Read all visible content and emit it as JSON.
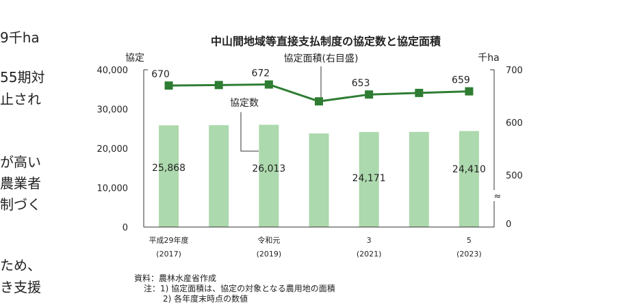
{
  "side_text": [
    "9千ha",
    "55期対",
    "止され",
    "が高い",
    "農業者",
    "制づく",
    "ため、",
    "き支援"
  ],
  "chart_data": {
    "type": "bar+line",
    "title": "中山間地域等直接支払制度の協定数と協定面積",
    "categories": [
      "平成29年度",
      "",
      "令和元",
      "",
      "3",
      "",
      "5"
    ],
    "categories_sub": [
      "(2017)",
      "",
      "(2019)",
      "",
      "(2021)",
      "",
      "(2023)"
    ],
    "left_axis": {
      "label": "協定",
      "ylim": [
        0,
        40000
      ],
      "ticks": [
        "0",
        "10,000",
        "20,000",
        "30,000",
        "40,000"
      ]
    },
    "right_axis": {
      "label": "千ha",
      "ylim": [
        500,
        700
      ],
      "ticks": [
        "0",
        "500",
        "600",
        "700"
      ],
      "break": "≈"
    },
    "series": [
      {
        "name": "協定数",
        "type": "bar",
        "axis": "left",
        "values": [
          25868,
          25900,
          26013,
          23800,
          24171,
          24200,
          24410
        ],
        "data_labels": [
          "25,868",
          "",
          "26,013",
          "",
          "24,171",
          "",
          "24,410"
        ]
      },
      {
        "name": "協定面積(右目盛)",
        "type": "line",
        "axis": "right",
        "values": [
          670,
          671,
          672,
          640,
          653,
          656,
          659
        ],
        "data_labels": [
          "670",
          "",
          "672",
          "",
          "653",
          "",
          "659"
        ]
      }
    ],
    "colors": {
      "bar": "#acd9ad",
      "line": "#2e7d32"
    }
  },
  "notes": {
    "source": "資料：農林水産省作成",
    "note1": "注：1) 協定面積は、協定の対象となる農用地の面積",
    "note2": "2) 各年度末時点の数値"
  }
}
